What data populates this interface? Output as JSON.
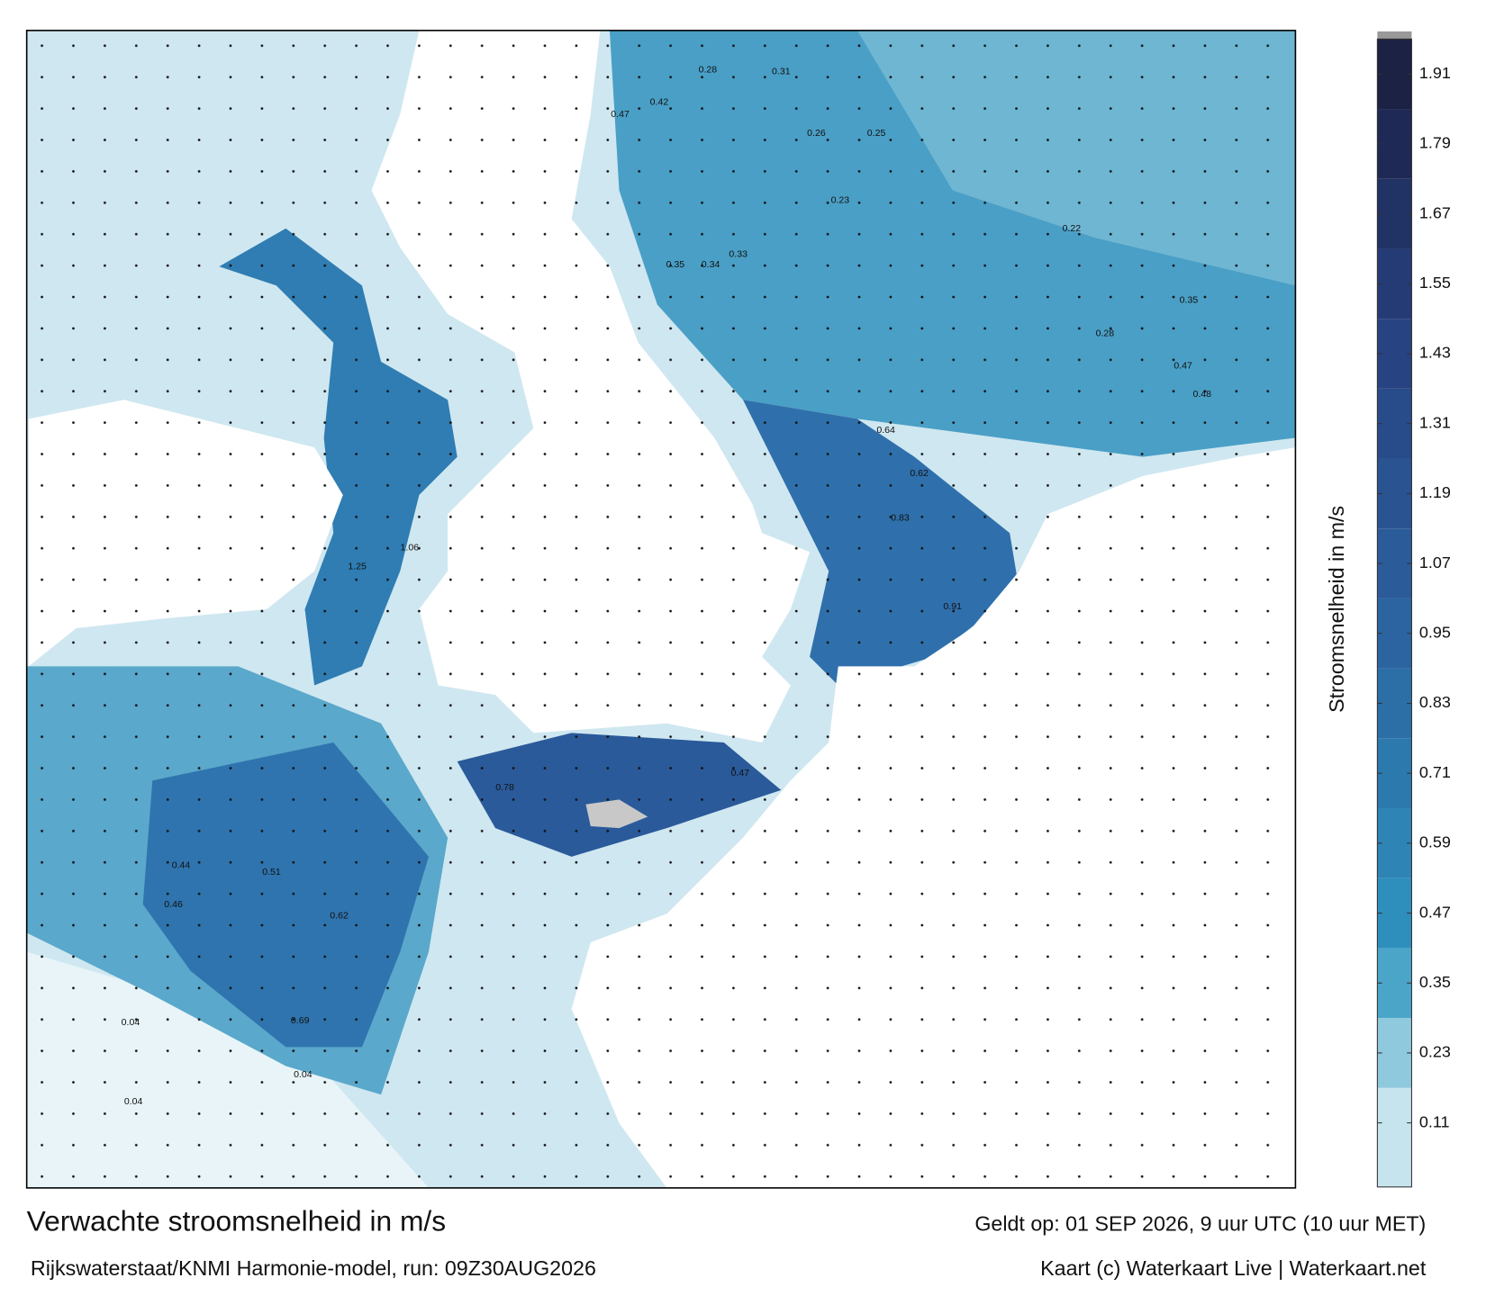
{
  "header": {
    "title": "Verwachte stroomsnelheid in m/s",
    "subtitle": "Rijkswaterstaat/KNMI Harmonie-model, run: 09Z30AUG2026",
    "valid_time": "Geldt op: 01 SEP 2026, 9 uur UTC (10 uur MET)",
    "credit": "Kaart (c) Waterkaart Live | Waterkaart.net"
  },
  "colorbar": {
    "label": "Stroomsnelheid in m/s",
    "lim": [
      0,
      1.97
    ],
    "ticks": [
      0.11,
      0.23,
      0.35,
      0.47,
      0.59,
      0.71,
      0.83,
      0.95,
      1.07,
      1.19,
      1.31,
      1.43,
      1.55,
      1.67,
      1.79,
      1.91
    ]
  },
  "map": {
    "speed_labels": [
      "0.47",
      "0.42",
      "0.28",
      "0.31",
      "0.26",
      "0.25",
      "0.23",
      "0.35",
      "0.34",
      "0.33",
      "0.22",
      "0.35",
      "0.28",
      "0.47",
      "0.48",
      "0.62",
      "0.83",
      "0.91",
      "0.64",
      "0.46",
      "0.44",
      "0.51",
      "0.62",
      "0.69",
      "0.04",
      "0.04",
      "0.04",
      "1.25",
      "1.06",
      "0.78",
      "0.47"
    ]
  }
}
